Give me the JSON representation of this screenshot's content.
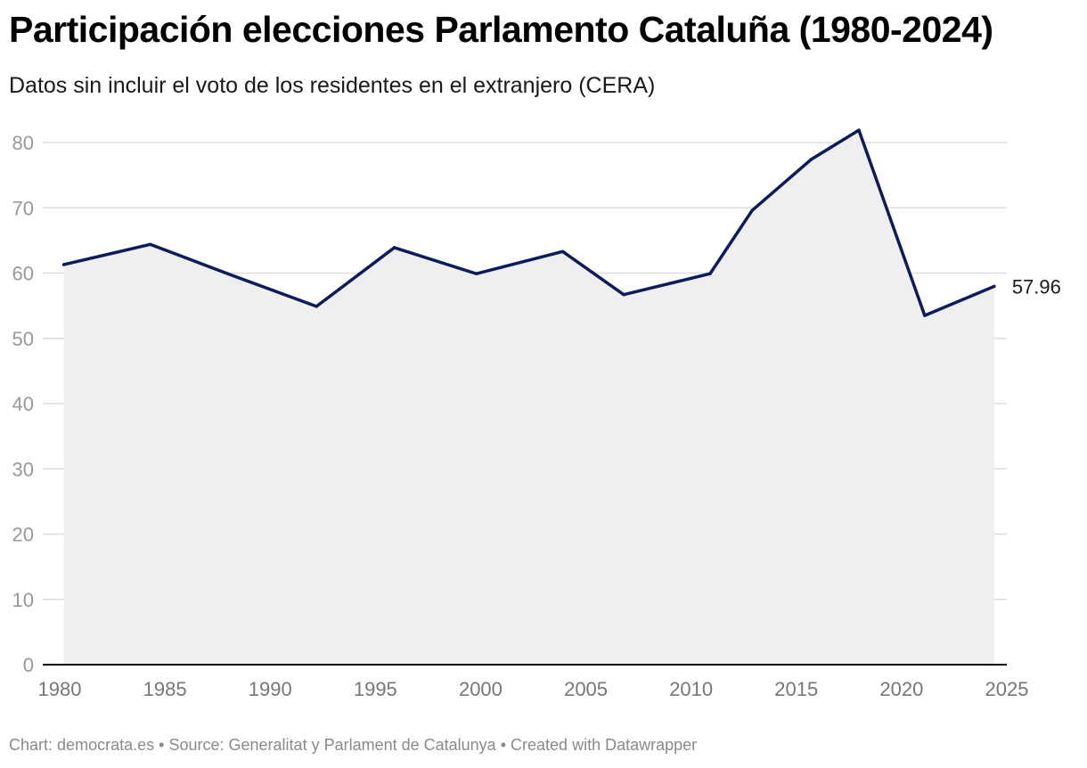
{
  "title": "Participación elecciones Parlamento Cataluña (1980-2024)",
  "subtitle": "Datos sin incluir el voto de los residentes en el extranjero (CERA)",
  "footer": {
    "chart_label": "Chart:",
    "chart_value": "democrata.es",
    "separator": "•",
    "source_label": "Source:",
    "source_value": "Generalitat y Parlament de Catalunya",
    "created": "Created with Datawrapper"
  },
  "colors": {
    "line": "#0b1b5c",
    "area": "#efefef",
    "grid": "#dddddd",
    "axis": "#000000",
    "tick_text": "#999999",
    "axis_year_text": "#777777",
    "label_text": "#1a1a1a"
  },
  "chart_data": {
    "type": "area",
    "title": "Participación elecciones Parlamento Cataluña (1980-2024)",
    "subtitle": "Datos sin incluir el voto de los residentes en el extranjero (CERA)",
    "xlabel": "",
    "ylabel": "",
    "xlim": [
      1980,
      2025
    ],
    "ylim": [
      0,
      80
    ],
    "yticks": [
      0,
      10,
      20,
      30,
      40,
      50,
      60,
      70,
      80
    ],
    "xticks": [
      1980,
      1985,
      1990,
      1995,
      2000,
      2005,
      2010,
      2015,
      2020,
      2025
    ],
    "grid": true,
    "series": [
      {
        "name": "Participación",
        "x": [
          1980.2,
          1984.3,
          1988.4,
          1992.2,
          1995.9,
          1999.8,
          2003.9,
          2006.8,
          2010.9,
          2012.9,
          2015.7,
          2017.97,
          2021.1,
          2024.4
        ],
        "values": [
          61.3,
          64.4,
          59.4,
          54.9,
          63.9,
          59.9,
          63.3,
          56.7,
          59.9,
          69.6,
          77.4,
          81.9,
          53.5,
          57.96
        ]
      }
    ],
    "annotations": [
      {
        "text": "57.96",
        "x": 2024.4,
        "y": 57.96
      }
    ]
  }
}
